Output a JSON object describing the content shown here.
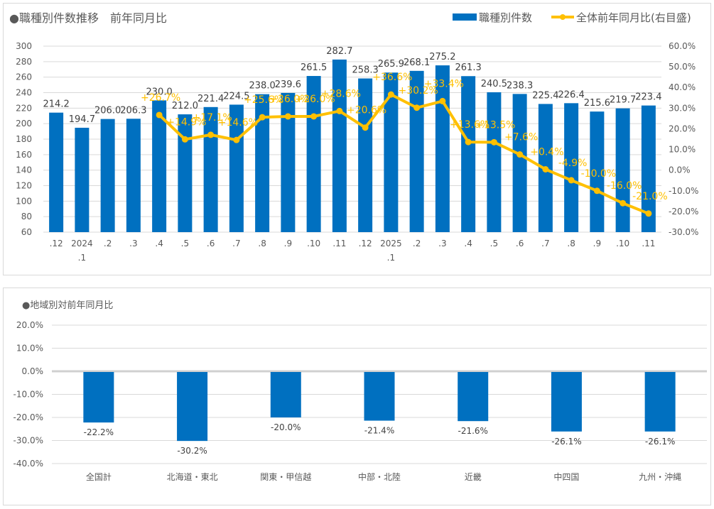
{
  "chart_data": [
    {
      "type": "bar+line",
      "title": "●職種別件数推移　前年同月比",
      "legend": {
        "placement": "top-right",
        "entries": [
          {
            "name": "職種別件数",
            "kind": "bar",
            "color": "#0070c0"
          },
          {
            "name": "全体前年同月比(右目盛)",
            "kind": "line",
            "color": "#ffc000"
          }
        ]
      },
      "categories": [
        ".12",
        "2024\n.1",
        ".2",
        ".3",
        ".4",
        ".5",
        ".6",
        ".7",
        ".8",
        ".9",
        ".10",
        ".11",
        ".12",
        "2025\n.1",
        ".2",
        ".3",
        ".4",
        ".5",
        ".6",
        ".7",
        ".8",
        ".9",
        ".10",
        ".11"
      ],
      "category_lines": [
        [
          ".12"
        ],
        [
          "2024",
          ".1"
        ],
        [
          ".2"
        ],
        [
          ".3"
        ],
        [
          ".4"
        ],
        [
          ".5"
        ],
        [
          ".6"
        ],
        [
          ".7"
        ],
        [
          ".8"
        ],
        [
          ".9"
        ],
        [
          ".10"
        ],
        [
          ".11"
        ],
        [
          ".12"
        ],
        [
          "2025",
          ".1"
        ],
        [
          ".2"
        ],
        [
          ".3"
        ],
        [
          ".4"
        ],
        [
          ".5"
        ],
        [
          ".6"
        ],
        [
          ".7"
        ],
        [
          ".8"
        ],
        [
          ".9"
        ],
        [
          ".10"
        ],
        [
          ".11"
        ]
      ],
      "series": [
        {
          "name": "職種別件数",
          "axis": "left",
          "values": [
            214.2,
            194.7,
            206.0,
            206.3,
            230.0,
            212.0,
            221.4,
            224.5,
            238.0,
            239.6,
            261.5,
            282.7,
            258.3,
            265.9,
            268.1,
            275.2,
            261.3,
            240.5,
            238.3,
            225.4,
            226.4,
            215.6,
            219.7,
            223.4
          ],
          "labels": [
            "214.2",
            "194.7",
            "206.0",
            "206.3",
            "230.0",
            "212.0",
            "221.4",
            "224.5",
            "238.0",
            "239.6",
            "261.5",
            "282.7",
            "258.3",
            "265.9",
            "268.1",
            "275.2",
            "261.3",
            "240.5",
            "238.3",
            "225.4",
            "226.4",
            "215.6",
            "219.7",
            "223.4"
          ]
        },
        {
          "name": "全体前年同月比(右目盛)",
          "axis": "right",
          "values": [
            null,
            null,
            null,
            null,
            26.7,
            14.9,
            17.1,
            14.6,
            25.6,
            26.0,
            26.0,
            28.6,
            20.6,
            36.6,
            30.2,
            33.4,
            13.6,
            13.5,
            7.6,
            0.4,
            -4.9,
            -10.0,
            -16.0,
            -21.0
          ],
          "labels": [
            null,
            null,
            null,
            null,
            "+26.7%",
            "+14.9%",
            "+17.1%",
            "+14.6%",
            "+25.6%",
            "+26.0%",
            "+26.0%",
            "+28.6%",
            "+20.6%",
            "+36.6%",
            "+30.2%",
            "+33.4%",
            "+13.6%",
            "+13.5%",
            "+7.6%",
            "+0.4%",
            "-4.9%",
            "-10.0%",
            "-16.0%",
            "-21.0%"
          ]
        }
      ],
      "ylim": [
        60,
        300
      ],
      "yticks": [
        "300",
        "280",
        "260",
        "240",
        "220",
        "200",
        "180",
        "160",
        "140",
        "120",
        "100",
        "80",
        "60"
      ],
      "ylim_right": [
        -30,
        60
      ],
      "yticks_right": [
        "60.0%",
        "50.0%",
        "40.0%",
        "30.0%",
        "20.0%",
        "10.0%",
        "0.0%",
        "-10.0%",
        "-20.0%",
        "-30.0%"
      ],
      "grid": true,
      "xlabel": "",
      "ylabel": ""
    },
    {
      "type": "bar",
      "title": "●地域別対前年同月比",
      "categories": [
        "全国計",
        "北海道・東北",
        "関東・甲信越",
        "中部・北陸",
        "近畿",
        "中四国",
        "九州・沖縄"
      ],
      "values": [
        -22.2,
        -30.2,
        -20.0,
        -21.4,
        -21.6,
        -26.1,
        -26.1
      ],
      "labels": [
        "-22.2%",
        "-30.2%",
        "-20.0%",
        "-21.4%",
        "-21.6%",
        "-26.1%",
        "-26.1%"
      ],
      "ylim": [
        -40,
        20
      ],
      "yticks": [
        "20.0%",
        "10.0%",
        "0.0%",
        "-10.0%",
        "-20.0%",
        "-30.0%",
        "-40.0%"
      ],
      "grid": true,
      "color": "#0070c0",
      "xlabel": "",
      "ylabel": ""
    }
  ]
}
